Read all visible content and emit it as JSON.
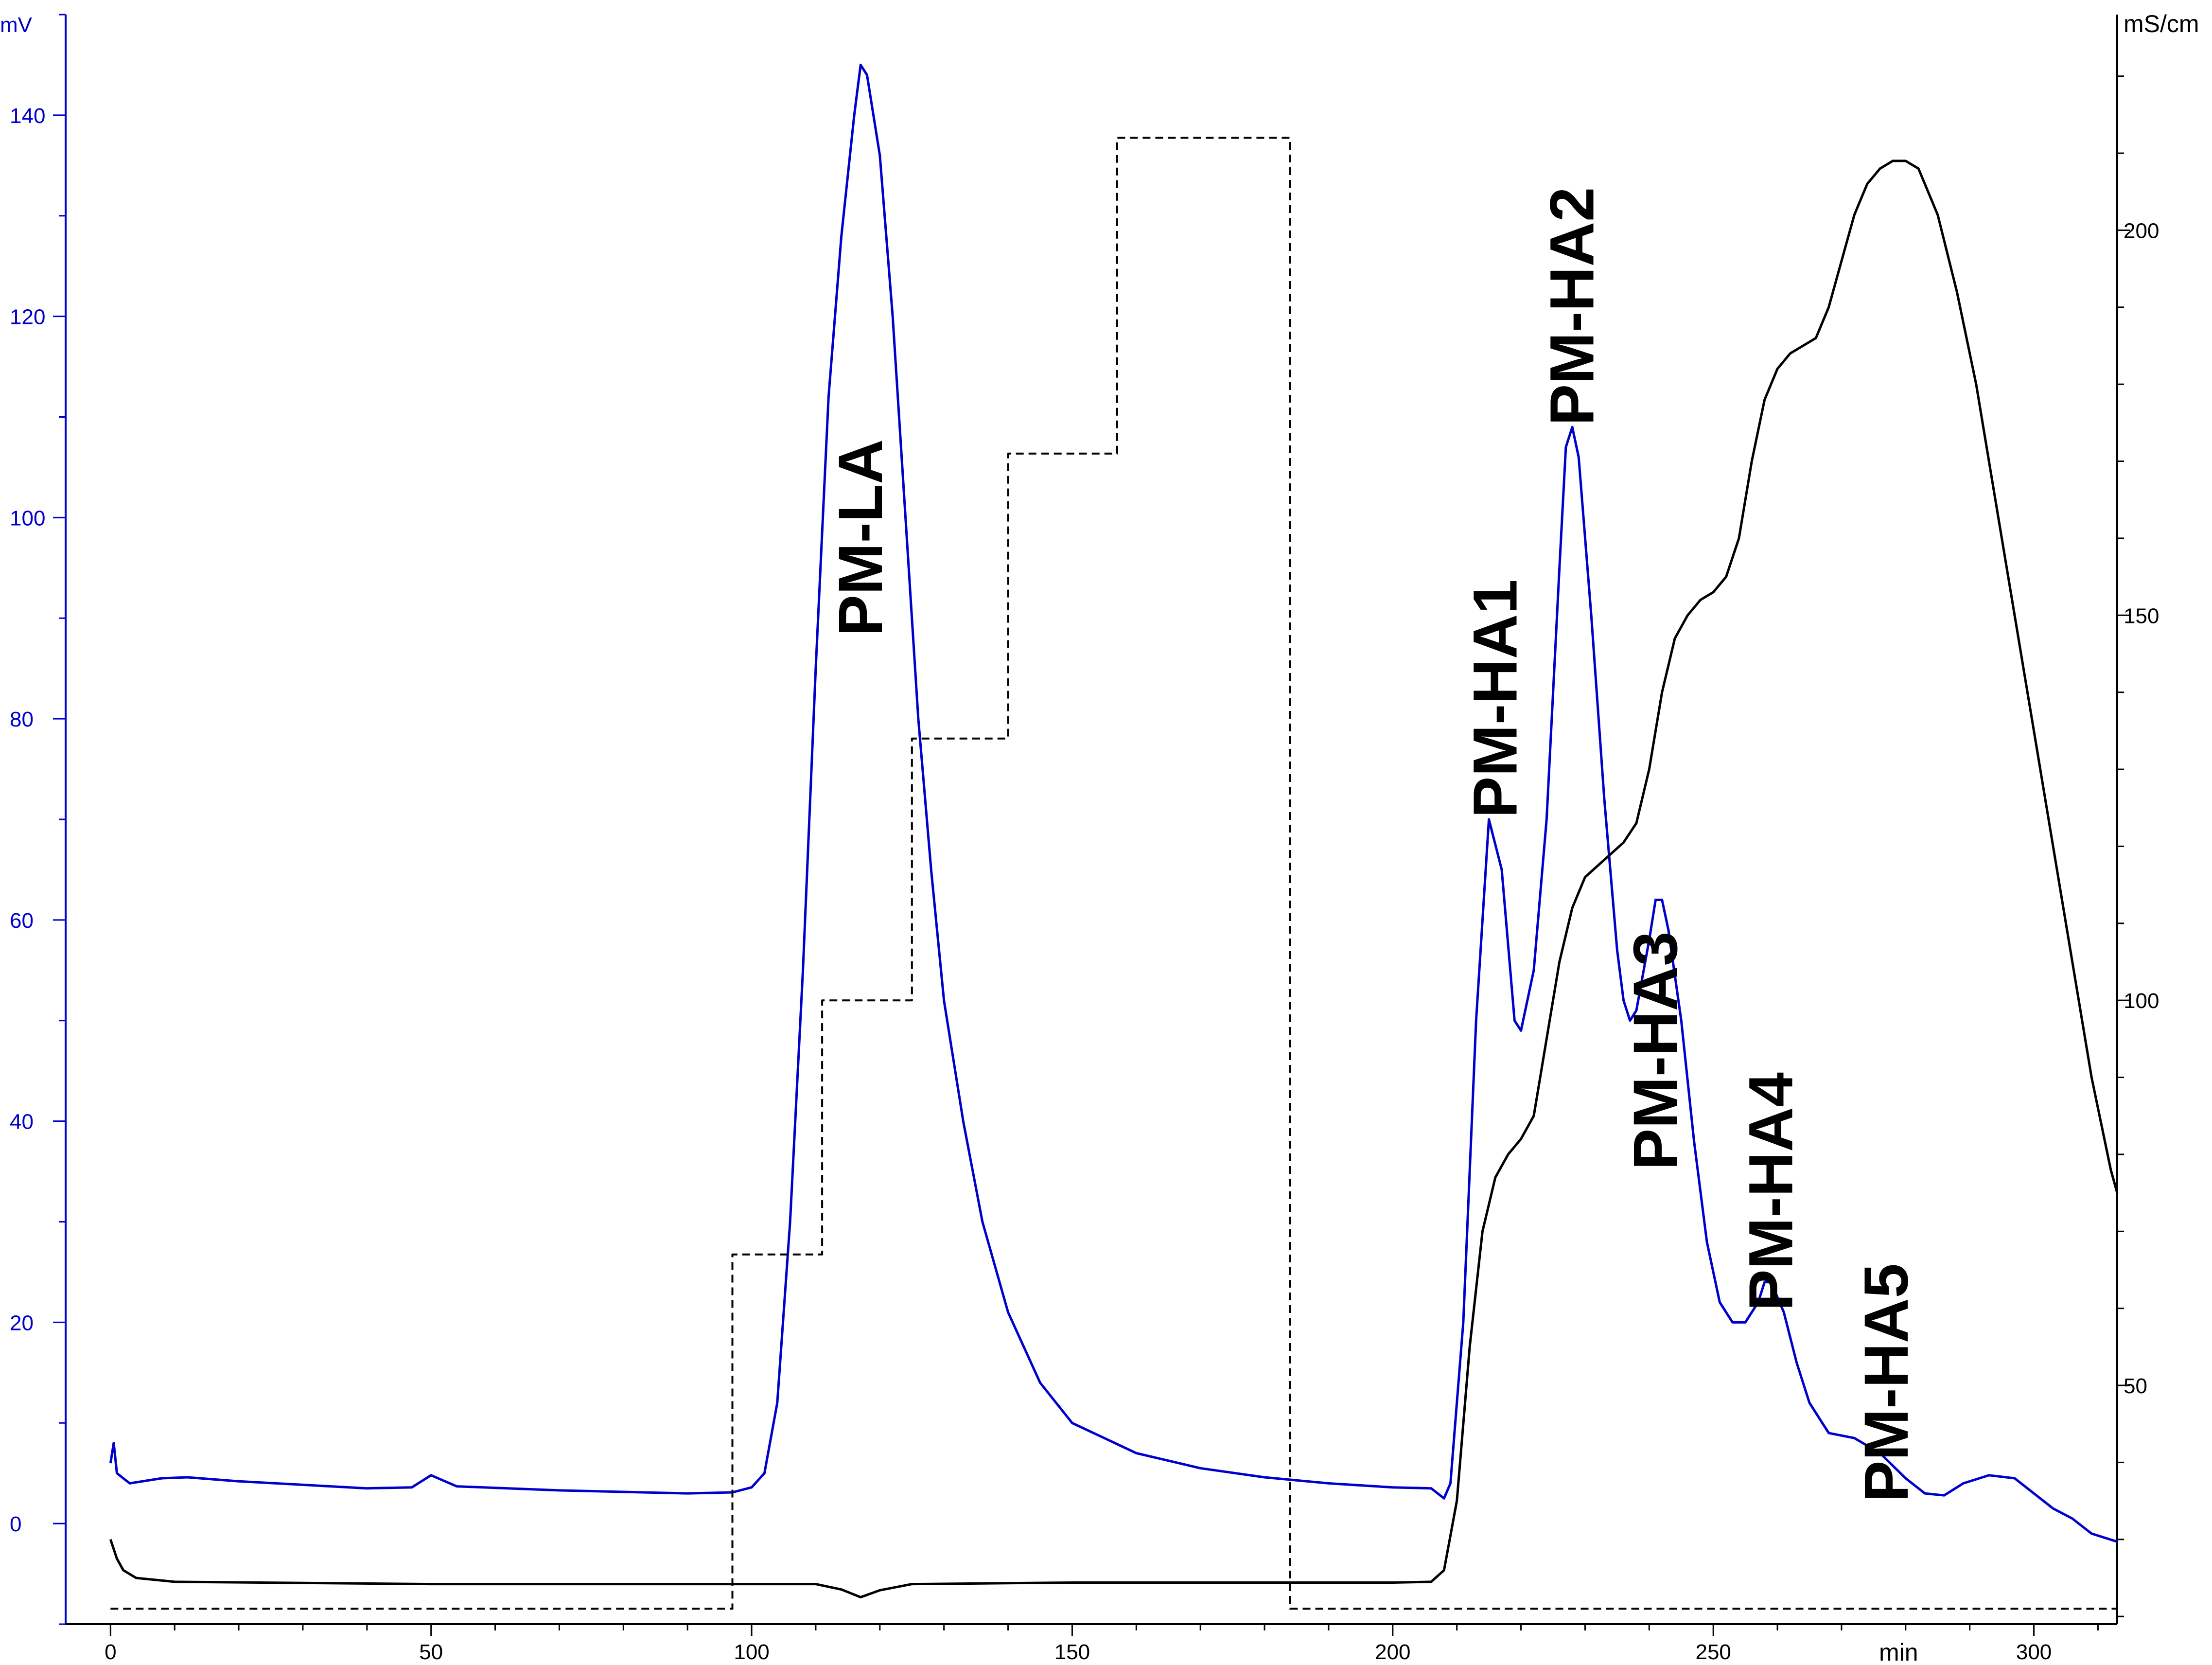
{
  "chart_data": {
    "type": "line",
    "title": "",
    "x_axis": {
      "unit": "min",
      "range": [
        -7,
        313
      ],
      "ticks": [
        0,
        50,
        100,
        150,
        200,
        250,
        300
      ]
    },
    "y_left": {
      "unit": "mV",
      "range": [
        -10,
        150
      ],
      "ticks": [
        0,
        20,
        40,
        60,
        80,
        100,
        120,
        140
      ],
      "color": "#0000cc"
    },
    "y_right": {
      "unit": "mS/cm",
      "range": [
        19,
        228
      ],
      "ticks": [
        50,
        100,
        150,
        200
      ],
      "color": "#000000"
    },
    "grid": false,
    "series": [
      {
        "axis": "left",
        "color": "#0000cc",
        "style": "solid",
        "points": [
          [
            0,
            6
          ],
          [
            0.5,
            8
          ],
          [
            1,
            5
          ],
          [
            3,
            4
          ],
          [
            8,
            4.5
          ],
          [
            12,
            4.6
          ],
          [
            20,
            4.2
          ],
          [
            40,
            3.5
          ],
          [
            47,
            3.6
          ],
          [
            50,
            4.8
          ],
          [
            54,
            3.7
          ],
          [
            70,
            3.3
          ],
          [
            90,
            3.0
          ],
          [
            97,
            3.1
          ],
          [
            100,
            3.6
          ],
          [
            102,
            5
          ],
          [
            104,
            12
          ],
          [
            106,
            30
          ],
          [
            108,
            55
          ],
          [
            110,
            85
          ],
          [
            112,
            112
          ],
          [
            114,
            128
          ],
          [
            116,
            140
          ],
          [
            117,
            145
          ],
          [
            118,
            144
          ],
          [
            120,
            136
          ],
          [
            122,
            120
          ],
          [
            124,
            100
          ],
          [
            126,
            80
          ],
          [
            128,
            65
          ],
          [
            130,
            52
          ],
          [
            133,
            40
          ],
          [
            136,
            30
          ],
          [
            140,
            21
          ],
          [
            145,
            14
          ],
          [
            150,
            10
          ],
          [
            160,
            7
          ],
          [
            170,
            5.5
          ],
          [
            180,
            4.6
          ],
          [
            190,
            4.0
          ],
          [
            200,
            3.6
          ],
          [
            206,
            3.5
          ],
          [
            208,
            2.5
          ],
          [
            209,
            4
          ],
          [
            211,
            20
          ],
          [
            213,
            50
          ],
          [
            215,
            70
          ],
          [
            217,
            65
          ],
          [
            219,
            50
          ],
          [
            220,
            49
          ],
          [
            222,
            55
          ],
          [
            224,
            70
          ],
          [
            226,
            95
          ],
          [
            227,
            107
          ],
          [
            228,
            109
          ],
          [
            229,
            106
          ],
          [
            231,
            90
          ],
          [
            233,
            72
          ],
          [
            235,
            57
          ],
          [
            236,
            52
          ],
          [
            237,
            50
          ],
          [
            238,
            51
          ],
          [
            240,
            58
          ],
          [
            241,
            62
          ],
          [
            242,
            62
          ],
          [
            243,
            59
          ],
          [
            245,
            50
          ],
          [
            247,
            38
          ],
          [
            249,
            28
          ],
          [
            251,
            22
          ],
          [
            253,
            20
          ],
          [
            255,
            20
          ],
          [
            257,
            22
          ],
          [
            258,
            24
          ],
          [
            259,
            24
          ],
          [
            261,
            21
          ],
          [
            263,
            16
          ],
          [
            265,
            12
          ],
          [
            268,
            9
          ],
          [
            272,
            8.5
          ],
          [
            276,
            7
          ],
          [
            280,
            4.5
          ],
          [
            283,
            3
          ],
          [
            286,
            2.8
          ],
          [
            289,
            4
          ],
          [
            293,
            4.8
          ],
          [
            297,
            4.5
          ],
          [
            300,
            3
          ],
          [
            303,
            1.5
          ],
          [
            306,
            0.5
          ],
          [
            309,
            -1
          ],
          [
            313,
            -1.8
          ]
        ]
      },
      {
        "axis": "right",
        "color": "#000000",
        "style": "solid",
        "points": [
          [
            0,
            30
          ],
          [
            1,
            27.5
          ],
          [
            2,
            26
          ],
          [
            4,
            25
          ],
          [
            10,
            24.5
          ],
          [
            50,
            24.2
          ],
          [
            100,
            24.2
          ],
          [
            110,
            24.2
          ],
          [
            114,
            23.5
          ],
          [
            117,
            22.5
          ],
          [
            120,
            23.4
          ],
          [
            125,
            24.2
          ],
          [
            150,
            24.4
          ],
          [
            200,
            24.4
          ],
          [
            206,
            24.5
          ],
          [
            208,
            26
          ],
          [
            210,
            35
          ],
          [
            212,
            55
          ],
          [
            214,
            70
          ],
          [
            216,
            77
          ],
          [
            218,
            80
          ],
          [
            220,
            82
          ],
          [
            222,
            85
          ],
          [
            224,
            95
          ],
          [
            226,
            105
          ],
          [
            228,
            112
          ],
          [
            230,
            116
          ],
          [
            232,
            117.5
          ],
          [
            234,
            119
          ],
          [
            236,
            120.5
          ],
          [
            238,
            123
          ],
          [
            240,
            130
          ],
          [
            242,
            140
          ],
          [
            244,
            147
          ],
          [
            246,
            150
          ],
          [
            248,
            152
          ],
          [
            250,
            153
          ],
          [
            252,
            155
          ],
          [
            254,
            160
          ],
          [
            256,
            170
          ],
          [
            258,
            178
          ],
          [
            260,
            182
          ],
          [
            262,
            184
          ],
          [
            264,
            185
          ],
          [
            266,
            186
          ],
          [
            268,
            190
          ],
          [
            270,
            196
          ],
          [
            272,
            202
          ],
          [
            274,
            206
          ],
          [
            276,
            208
          ],
          [
            278,
            209
          ],
          [
            280,
            209
          ],
          [
            282,
            208
          ],
          [
            285,
            202
          ],
          [
            288,
            192
          ],
          [
            291,
            180
          ],
          [
            294,
            165
          ],
          [
            297,
            150
          ],
          [
            300,
            135
          ],
          [
            303,
            120
          ],
          [
            306,
            105
          ],
          [
            309,
            90
          ],
          [
            312,
            78
          ],
          [
            313,
            75
          ]
        ]
      },
      {
        "axis": "right",
        "color": "#000000",
        "style": "dashed",
        "points": [
          [
            0,
            21
          ],
          [
            97,
            21
          ],
          [
            97,
            67
          ],
          [
            111,
            67
          ],
          [
            111,
            100
          ],
          [
            125,
            100
          ],
          [
            125,
            134
          ],
          [
            140,
            134
          ],
          [
            140,
            171
          ],
          [
            157,
            171
          ],
          [
            157,
            212
          ],
          [
            184,
            212
          ],
          [
            184,
            21
          ],
          [
            313,
            21
          ]
        ]
      }
    ],
    "annotations": [
      {
        "text": "PM-LA",
        "x": 117,
        "y": 98
      },
      {
        "text": "PM-HA1",
        "x": 216,
        "y": 82
      },
      {
        "text": "PM-HA2",
        "x": 228,
        "y": 121
      },
      {
        "text": "PM-HA3",
        "x": 241,
        "y": 47
      },
      {
        "text": "PM-HA4",
        "x": 259,
        "y": 33
      },
      {
        "text": "PM-HA5",
        "x": 277,
        "y": 14
      }
    ]
  }
}
